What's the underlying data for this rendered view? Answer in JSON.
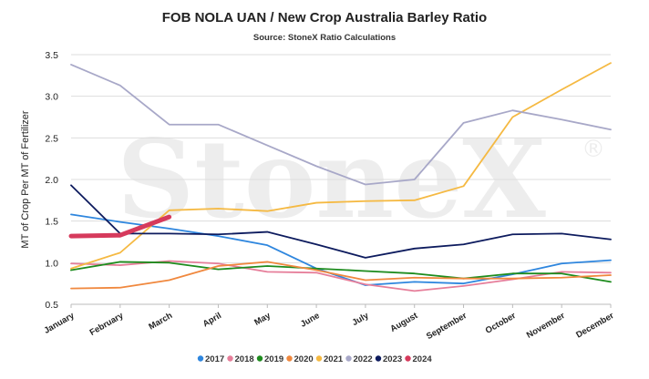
{
  "chart_data": {
    "type": "line",
    "title": "FOB NOLA UAN / New Crop Australia Barley Ratio",
    "subtitle": "Source: StoneX Ratio Calculations",
    "ylabel": "MT of Crop Per MT of Fertilizer",
    "xlabel": "",
    "watermark": "StoneX",
    "watermark_mark": "®",
    "categories": [
      "January",
      "February",
      "March",
      "April",
      "May",
      "June",
      "July",
      "August",
      "September",
      "October",
      "November",
      "December"
    ],
    "ylim": [
      0.5,
      3.5
    ],
    "yticks": [
      "0.5",
      "1.0",
      "1.5",
      "2.0",
      "2.5",
      "3.0",
      "3.5"
    ],
    "grid": true,
    "legend_position": "bottom",
    "series": [
      {
        "name": "2017",
        "color": "#2e86de",
        "width": 1.8,
        "values": [
          1.58,
          1.49,
          1.41,
          1.32,
          1.21,
          0.93,
          0.73,
          0.77,
          0.75,
          0.86,
          0.99,
          1.03
        ]
      },
      {
        "name": "2018",
        "color": "#e67e9a",
        "width": 1.8,
        "values": [
          0.99,
          0.97,
          1.02,
          0.99,
          0.89,
          0.88,
          0.74,
          0.66,
          0.72,
          0.8,
          0.89,
          0.88
        ]
      },
      {
        "name": "2019",
        "color": "#1e8c1e",
        "width": 1.8,
        "values": [
          0.91,
          1.01,
          1.0,
          0.92,
          0.96,
          0.93,
          0.9,
          0.87,
          0.81,
          0.87,
          0.87,
          0.77
        ]
      },
      {
        "name": "2020",
        "color": "#f0883e",
        "width": 1.8,
        "values": [
          0.69,
          0.7,
          0.79,
          0.96,
          1.01,
          0.91,
          0.79,
          0.82,
          0.81,
          0.81,
          0.82,
          0.85
        ]
      },
      {
        "name": "2021",
        "color": "#f5b942",
        "width": 1.8,
        "values": [
          0.93,
          1.12,
          1.63,
          1.65,
          1.62,
          1.72,
          1.74,
          1.75,
          1.92,
          2.75,
          3.08,
          3.4
        ]
      },
      {
        "name": "2022",
        "color": "#a8a8c8",
        "width": 1.8,
        "values": [
          3.38,
          3.13,
          2.66,
          2.66,
          2.41,
          2.16,
          1.94,
          2.0,
          2.68,
          2.83,
          2.72,
          2.6
        ]
      },
      {
        "name": "2023",
        "color": "#0d1b5e",
        "width": 1.8,
        "values": [
          1.93,
          1.35,
          1.35,
          1.34,
          1.37,
          1.22,
          1.06,
          1.17,
          1.22,
          1.34,
          1.35,
          1.28
        ]
      },
      {
        "name": "2024",
        "color": "#d63a5c",
        "width": 5,
        "values": [
          1.32,
          1.33,
          1.55,
          null,
          null,
          null,
          null,
          null,
          null,
          null,
          null,
          null
        ]
      }
    ]
  }
}
